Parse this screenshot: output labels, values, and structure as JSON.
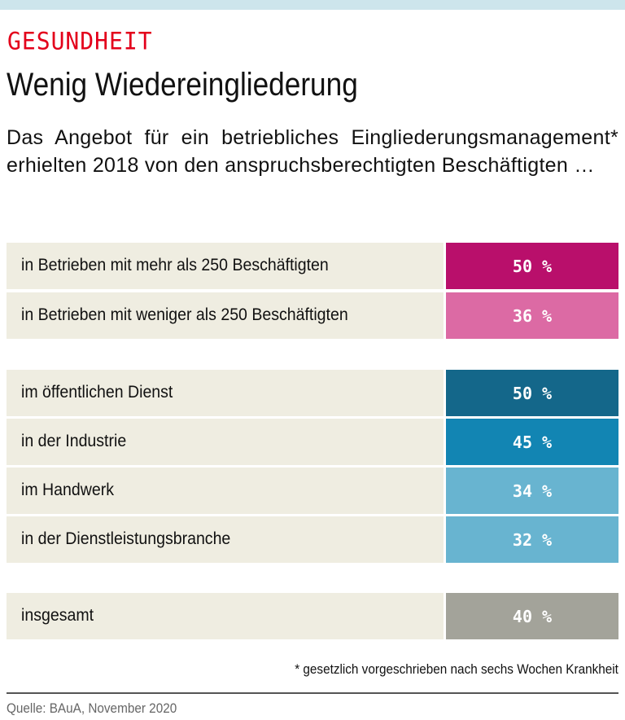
{
  "kicker": "GESUNDHEIT",
  "title": "Wenig Wiedereingliederung",
  "subtitle": "Das Angebot für ein betriebliches Eingliederungsmanagement* erhielten 2018 von den anspruchsberechtigten Beschäftigten …",
  "chart_data": {
    "type": "table",
    "rows": [
      {
        "label": "in Betrieben mit mehr als 250 Beschäftigten",
        "value": 50,
        "display": "50 %",
        "color": "#b90f6b"
      },
      {
        "label": "in Betrieben mit weniger als 250 Beschäftigten",
        "value": 36,
        "display": "36 %",
        "color": "#dc6aa4"
      },
      {
        "label": "im öffentlichen Dienst",
        "value": 50,
        "display": "50 %",
        "color": "#14678a"
      },
      {
        "label": "in der Industrie",
        "value": 45,
        "display": "45 %",
        "color": "#1285b3"
      },
      {
        "label": "im Handwerk",
        "value": 34,
        "display": "34 %",
        "color": "#68b4d0"
      },
      {
        "label": "in der Dienstleistungsbranche",
        "value": 32,
        "display": "32 %",
        "color": "#68b4d0"
      },
      {
        "label": "insgesamt",
        "value": 40,
        "display": "40 %",
        "color": "#a3a39a"
      }
    ],
    "groups": [
      [
        0,
        1
      ],
      [
        2,
        3,
        4,
        5
      ],
      [
        6
      ]
    ],
    "unit": "%"
  },
  "footnote": "* gesetzlich vorgeschrieben nach sechs Wochen Krankheit",
  "source": "Quelle: BAuA, November 2020"
}
